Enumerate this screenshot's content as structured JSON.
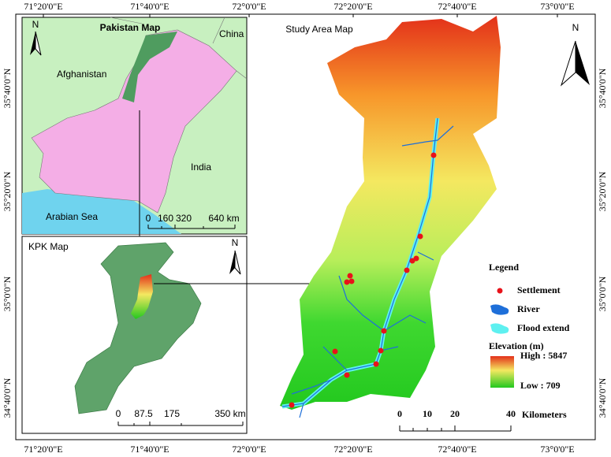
{
  "title": "Study Area Map",
  "north": "N",
  "longitude_labels": [
    "71°20'0\"E",
    "71°40'0\"E",
    "72°0'0\"E",
    "72°20'0\"E",
    "72°40'0\"E",
    "73°0'0\"E"
  ],
  "latitude_labels": [
    "35°40'0\"N",
    "35°20'0\"N",
    "35°0'0\"N",
    "34°40'0\"N"
  ],
  "pakistan_inset": {
    "title": "Pakistan Map",
    "north": "N",
    "labels": [
      "China",
      "Afghanistan",
      "India",
      "Arabian Sea"
    ],
    "scale": [
      "0",
      "160",
      "320",
      "640 km"
    ]
  },
  "kpk_inset": {
    "title": "KPK Map",
    "north": "N",
    "scale": [
      "0",
      "87.5",
      "175",
      "350 km"
    ]
  },
  "legend": {
    "title": "Legend",
    "items": [
      "Settlement",
      "River",
      "Flood extend"
    ],
    "elevation_title": "Elevation (m)",
    "high": "High : 5847",
    "low": "Low : 709"
  },
  "scale_bar": {
    "ticks": [
      "0",
      "10",
      "20",
      "40"
    ],
    "unit": "Kilometers"
  }
}
